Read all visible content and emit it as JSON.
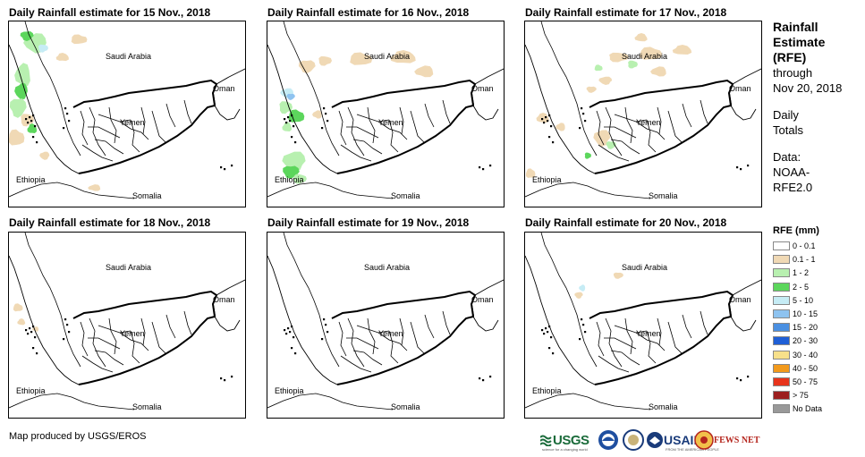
{
  "panels": [
    {
      "title": "Daily Rainfall estimate for 15 Nov., 2018"
    },
    {
      "title": "Daily Rainfall estimate for 16 Nov., 2018"
    },
    {
      "title": "Daily Rainfall estimate for 17 Nov., 2018"
    },
    {
      "title": "Daily Rainfall estimate for 18 Nov., 2018"
    },
    {
      "title": "Daily Rainfall estimate for 19 Nov., 2018"
    },
    {
      "title": "Daily Rainfall estimate for 20 Nov., 2018"
    }
  ],
  "map_labels": {
    "saudi_arabia": "Saudi Arabia",
    "oman": "Oman",
    "yemen": "Yemen",
    "ethiopia": "Ethiopia",
    "somalia": "Somalia"
  },
  "side_info": {
    "line1": "Rainfall",
    "line2": "Estimate",
    "line3": "(RFE)",
    "line4": "through",
    "line5": "Nov 20, 2018",
    "line6": "Daily",
    "line7": "Totals",
    "line8": "Data:",
    "line9": "NOAA-",
    "line10": "RFE2.0"
  },
  "legend": {
    "title": "RFE (mm)",
    "items": [
      {
        "label": "0 - 0.1",
        "color": "#ffffff"
      },
      {
        "label": "0.1 - 1",
        "color": "#f0d9b5"
      },
      {
        "label": "1 - 2",
        "color": "#b8f0b0"
      },
      {
        "label": "2 - 5",
        "color": "#5cd65c"
      },
      {
        "label": "5 - 10",
        "color": "#c6ecf5"
      },
      {
        "label": "10 - 15",
        "color": "#8ec3f0"
      },
      {
        "label": "15 - 20",
        "color": "#4a90e2"
      },
      {
        "label": "20 - 30",
        "color": "#1f5fd6"
      },
      {
        "label": "30 - 40",
        "color": "#f7e08a"
      },
      {
        "label": "40 - 50",
        "color": "#f29a1c"
      },
      {
        "label": "50 - 75",
        "color": "#e8341c"
      },
      {
        "label": "> 75",
        "color": "#9c1f1f"
      },
      {
        "label": "No Data",
        "color": "#999999"
      }
    ]
  },
  "credit": "Map produced by USGS/EROS",
  "logos": {
    "usgs": "USGS",
    "usgs_tagline": "science for a changing world",
    "usaid": "USAID",
    "usaid_tagline": "FROM THE AMERICAN PEOPLE",
    "fews": "FEWS NET"
  }
}
